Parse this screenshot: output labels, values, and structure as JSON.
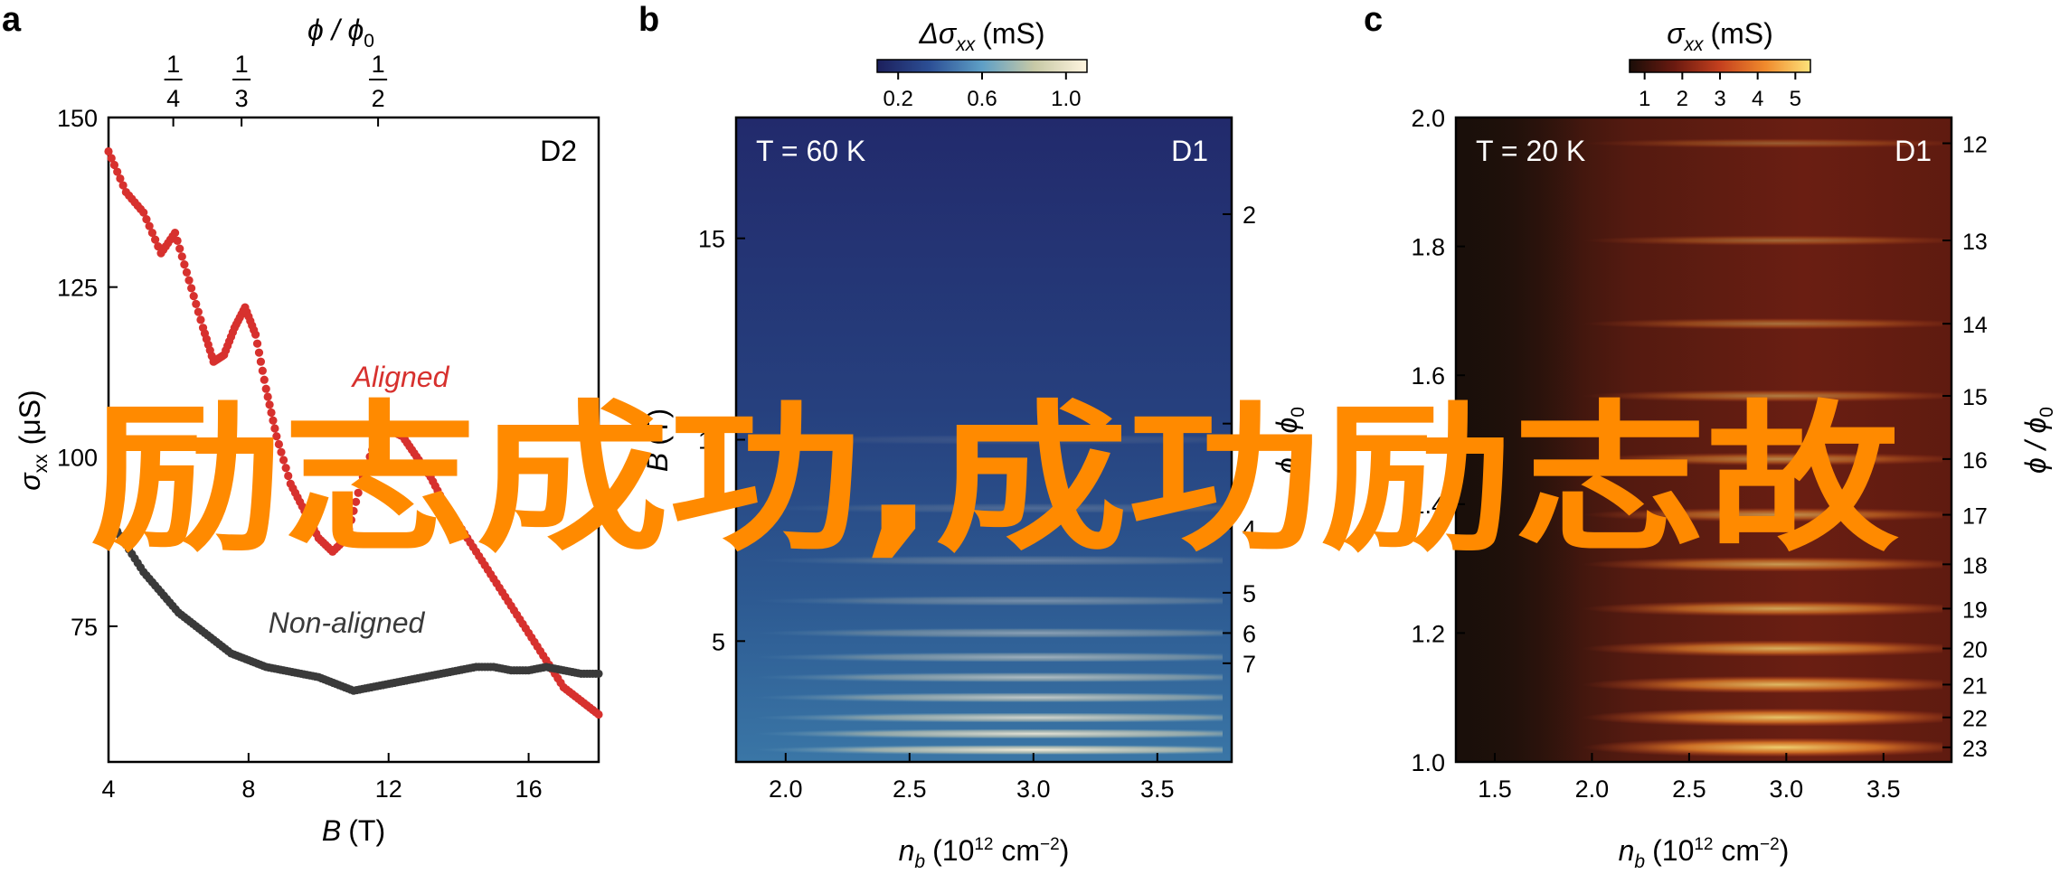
{
  "banner_text": "励志成功,成功励志故",
  "chart_data": [
    {
      "panel": "a",
      "type": "scatter",
      "device_label": "D2",
      "xlabel_var": "B",
      "xlabel_unit": "(T)",
      "ylabel_var": "σ",
      "ylabel_sub": "xx",
      "ylabel_unit": "(μS)",
      "top_axis_label": "ϕ / ϕ",
      "top_axis_label_sub": "0",
      "xlim": [
        4,
        18
      ],
      "ylim": [
        55,
        150
      ],
      "x_ticks": [
        4,
        8,
        12,
        16
      ],
      "y_ticks": [
        75,
        100,
        125,
        150
      ],
      "top_ticks": [
        {
          "x": 5.85,
          "num": "1",
          "den": "4"
        },
        {
          "x": 7.8,
          "num": "1",
          "den": "3"
        },
        {
          "x": 11.7,
          "num": "1",
          "den": "2"
        }
      ],
      "series": [
        {
          "name": "Aligned",
          "color": "#d7312e",
          "x": [
            4.0,
            4.5,
            5.0,
            5.5,
            5.9,
            6.3,
            6.7,
            7.0,
            7.3,
            7.6,
            7.9,
            8.2,
            8.5,
            8.8,
            9.2,
            9.6,
            10.0,
            10.4,
            10.8,
            11.2,
            11.6,
            12.0,
            12.4,
            12.8,
            13.2,
            13.6,
            14.0,
            14.5,
            15.0,
            15.5,
            16.0,
            16.5,
            17.0,
            17.5,
            18.0
          ],
          "values": [
            145,
            139,
            136,
            130,
            133,
            126,
            119,
            114,
            115,
            119,
            122,
            118,
            110,
            103,
            96,
            92,
            88,
            86,
            88,
            96,
            102,
            104,
            103,
            100,
            97,
            93,
            90,
            86,
            82,
            78,
            74,
            70,
            66,
            64,
            62
          ]
        },
        {
          "name": "Non-aligned",
          "color": "#3a3a3a",
          "x": [
            4.0,
            4.5,
            5.0,
            5.5,
            6.0,
            6.5,
            7.0,
            7.5,
            8.0,
            8.5,
            9.0,
            9.5,
            10.0,
            10.5,
            11.0,
            11.5,
            12.0,
            12.5,
            13.0,
            13.5,
            14.0,
            14.5,
            15.0,
            15.5,
            16.0,
            16.5,
            17.0,
            17.5,
            18.0
          ],
          "values": [
            91,
            87,
            83,
            80,
            77,
            75,
            73,
            71,
            70,
            69,
            68.5,
            68,
            67.5,
            66.5,
            65.5,
            66,
            66.5,
            67,
            67.5,
            68,
            68.5,
            69,
            69,
            68.5,
            68.5,
            69,
            68.5,
            68,
            68
          ]
        }
      ]
    },
    {
      "panel": "b",
      "type": "heatmap",
      "temperature_label": "T = 60 K",
      "device_label": "D1",
      "colorbar_label_var": "Δσ",
      "colorbar_label_sub": "xx",
      "colorbar_label_unit": "(mS)",
      "colorbar_ticks": [
        "0.2",
        "0.6",
        "1.0"
      ],
      "colorbar_range": [
        0.1,
        1.1
      ],
      "colorbar_colors": [
        "#1c1f5c",
        "#2c4f95",
        "#5e9fc6",
        "#c7c9a6",
        "#fff4df"
      ],
      "xlabel_var": "n",
      "xlabel_sub": "b",
      "xlabel_unit": "(10",
      "xlabel_exp": "12",
      "xlabel_unit2": " cm",
      "xlabel_exp2": "−2",
      "xlabel_close": ")",
      "ylabel_var": "B",
      "ylabel_unit": "(T)",
      "xlim": [
        1.8,
        3.8
      ],
      "ylim": [
        2,
        18
      ],
      "x_ticks": [
        "2.0",
        "2.5",
        "3.0",
        "3.5"
      ],
      "y_ticks": [
        "5",
        "10",
        "15"
      ],
      "right_axis_label": "ϕ / ϕ",
      "right_axis_label_sub": "0",
      "right_ticks": [
        "2",
        "3",
        "4",
        "5",
        "6",
        "7"
      ],
      "right_ticks_B": [
        15.6,
        10.4,
        7.8,
        6.2,
        5.2,
        4.45
      ]
    },
    {
      "panel": "c",
      "type": "heatmap",
      "temperature_label": "T = 20 K",
      "device_label": "D1",
      "colorbar_label_var": "σ",
      "colorbar_label_sub": "xx",
      "colorbar_label_unit": "(mS)",
      "colorbar_ticks": [
        "1",
        "2",
        "3",
        "4",
        "5"
      ],
      "colorbar_range": [
        0.6,
        5.4
      ],
      "colorbar_colors": [
        "#1a0d08",
        "#6b1a10",
        "#c4401e",
        "#f08a2c",
        "#fde27a"
      ],
      "xlabel_var": "n",
      "xlabel_sub": "b",
      "xlabel_unit": "(10",
      "xlabel_exp": "12",
      "xlabel_unit2": " cm",
      "xlabel_exp2": "−2",
      "xlabel_close": ")",
      "xlim": [
        1.3,
        3.85
      ],
      "ylim": [
        1.0,
        2.0
      ],
      "x_ticks": [
        "1.5",
        "2.0",
        "2.5",
        "3.0",
        "3.5"
      ],
      "y_ticks": [
        "1.0",
        "1.2",
        "1.4",
        "1.6",
        "1.8",
        "2.0"
      ],
      "right_axis_label": "ϕ / ϕ",
      "right_axis_label_sub": "0",
      "right_ticks": [
        "12",
        "13",
        "14",
        "15",
        "16",
        "17",
        "18",
        "19",
        "20",
        "21",
        "22",
        "23"
      ]
    }
  ]
}
